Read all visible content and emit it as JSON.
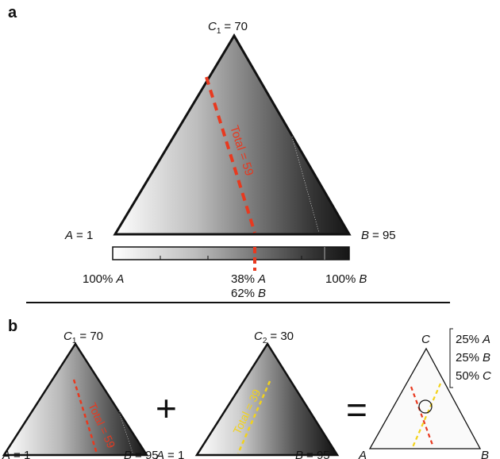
{
  "panel_a": {
    "letter": "a",
    "vertex_top": {
      "var": "C",
      "sub": "1",
      "value": "= 70"
    },
    "vertex_left": {
      "var": "A",
      "value": "= 1"
    },
    "vertex_right": {
      "var": "B",
      "value": "= 95"
    },
    "contour_label": "Total = 59",
    "colorbar": {
      "left_label": {
        "num": "100%",
        "var": "A"
      },
      "mid_label_1": {
        "num": "38%",
        "var": "A"
      },
      "mid_label_2": {
        "num": "62%",
        "var": "B"
      },
      "right_label": {
        "num": "100%",
        "var": "B"
      }
    },
    "colors": {
      "gradient_light": "#ffffff",
      "gradient_dark": "#1a1a1a",
      "contour": "#e8391f"
    }
  },
  "panel_b": {
    "letter": "b",
    "tri1": {
      "vertex_top": {
        "var": "C",
        "sub": "1",
        "value": "= 70"
      },
      "vertex_left": {
        "var": "A",
        "value": "= 1"
      },
      "vertex_right": {
        "var": "B",
        "value": "= 95"
      },
      "contour_label": "Total = 59"
    },
    "plus": "+",
    "tri2": {
      "vertex_top": {
        "var": "C",
        "sub": "2",
        "value": "= 30"
      },
      "vertex_left": {
        "var": "A",
        "value": "= 1"
      },
      "vertex_right": {
        "var": "B",
        "value": "= 95"
      },
      "contour_label": "Total = 39"
    },
    "equals": "=",
    "tri3": {
      "vertex_top": "C",
      "vertex_left": "A",
      "vertex_right": "B",
      "legend": [
        {
          "num": "25%",
          "var": "A"
        },
        {
          "num": "25%",
          "var": "B"
        },
        {
          "num": "50%",
          "var": "C"
        }
      ]
    },
    "colors": {
      "contour_red": "#e8391f",
      "contour_yellow": "#f2d21b"
    }
  }
}
